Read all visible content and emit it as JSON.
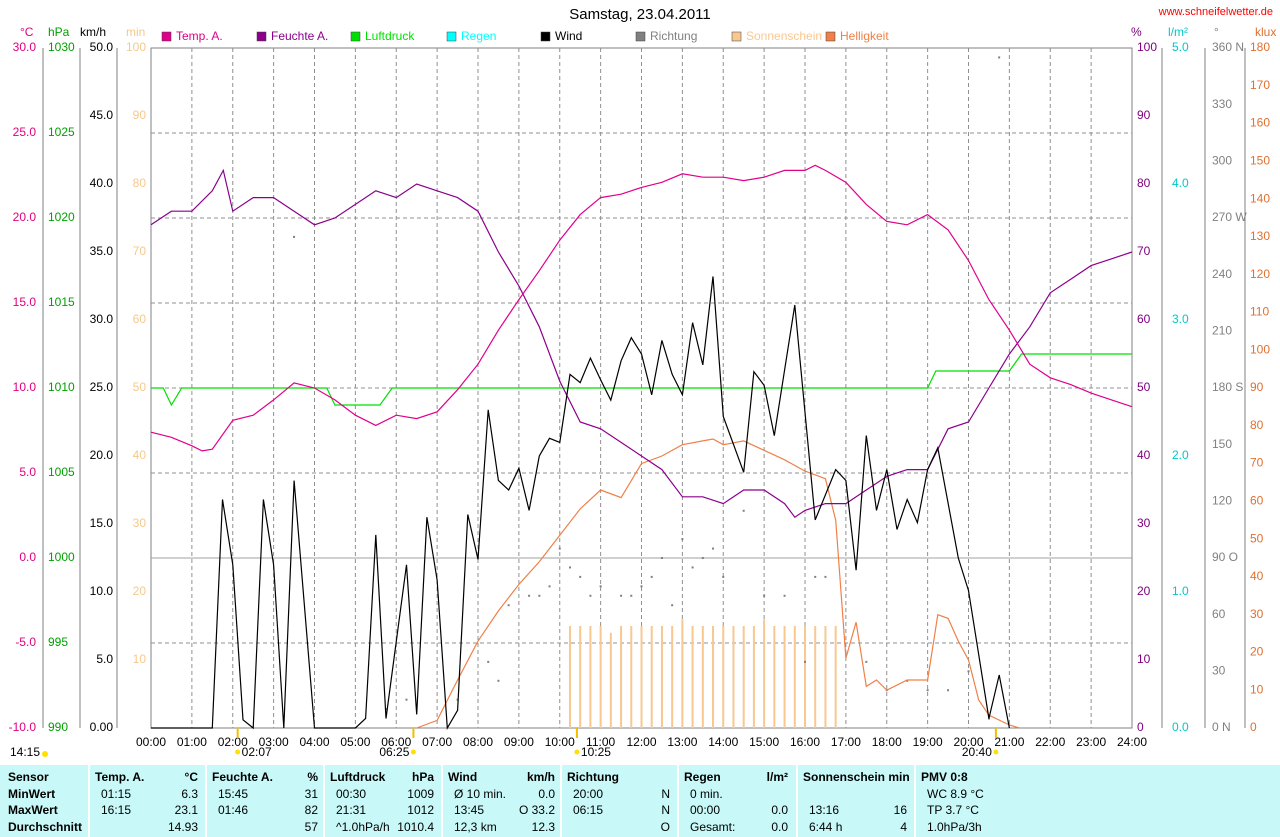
{
  "chart_data": {
    "type": "line",
    "title": "Samstag, 23.04.2011",
    "site": "www.schneifelwetter.de",
    "xlim": [
      0,
      24
    ],
    "xticks": [
      {
        "value": 0,
        "label": "00:00"
      },
      {
        "value": 1,
        "label": "01:00"
      },
      {
        "value": 2,
        "label": "02:00"
      },
      {
        "value": 3,
        "label": "03:00"
      },
      {
        "value": 4,
        "label": "04:00"
      },
      {
        "value": 5,
        "label": "05:00"
      },
      {
        "value": 6,
        "label": "06:00"
      },
      {
        "value": 7,
        "label": "07:00"
      },
      {
        "value": 8,
        "label": "08:00"
      },
      {
        "value": 9,
        "label": "09:00"
      },
      {
        "value": 10,
        "label": "10:00"
      },
      {
        "value": 11,
        "label": "11:00"
      },
      {
        "value": 12,
        "label": "12:00"
      },
      {
        "value": 13,
        "label": "13:00"
      },
      {
        "value": 14,
        "label": "14:00"
      },
      {
        "value": 15,
        "label": "15:00"
      },
      {
        "value": 16,
        "label": "16:00"
      },
      {
        "value": 17,
        "label": "17:00"
      },
      {
        "value": 18,
        "label": "18:00"
      },
      {
        "value": 19,
        "label": "19:00"
      },
      {
        "value": 20,
        "label": "20:00"
      },
      {
        "value": 21,
        "label": "21:00"
      },
      {
        "value": 22,
        "label": "22:00"
      },
      {
        "value": 23,
        "label": "23:00"
      },
      {
        "value": 24,
        "label": "24:00"
      }
    ],
    "grid": true,
    "axes": [
      {
        "unit": "°C",
        "color": "#e0007f",
        "lim": [
          -10,
          30
        ],
        "ticks": [
          {
            "value": 30,
            "label": "30.0"
          },
          {
            "value": 25,
            "label": "25.0"
          },
          {
            "value": 20,
            "label": "20.0"
          },
          {
            "value": 15,
            "label": "15.0"
          },
          {
            "value": 10,
            "label": "10.0"
          },
          {
            "value": 5,
            "label": "5.0"
          },
          {
            "value": 0,
            "label": "0.0"
          },
          {
            "value": -5,
            "label": "-5.0"
          },
          {
            "value": -10,
            "label": "-10.0"
          }
        ]
      },
      {
        "unit": "hPa",
        "color": "#00a000",
        "lim": [
          990,
          1030
        ],
        "ticks": [
          1030,
          1025,
          1020,
          1015,
          1010,
          1005,
          1000,
          995,
          990
        ]
      },
      {
        "unit": "km/h",
        "color": "#000000",
        "lim": [
          0,
          50
        ],
        "ticks": [
          {
            "value": 50,
            "label": "50.0"
          },
          {
            "value": 45,
            "label": "45.0"
          },
          {
            "value": 40,
            "label": "40.0"
          },
          {
            "value": 35,
            "label": "35.0"
          },
          {
            "value": 30,
            "label": "30.0"
          },
          {
            "value": 25,
            "label": "25.0"
          },
          {
            "value": 20,
            "label": "20.0"
          },
          {
            "value": 15,
            "label": "15.0"
          },
          {
            "value": 10,
            "label": "10.0"
          },
          {
            "value": 5,
            "label": "5.0"
          },
          {
            "value": 0,
            "label": "0.00"
          }
        ]
      },
      {
        "unit": "min",
        "color": "#f5c88c",
        "lim": [
          0,
          100
        ],
        "ticks": [
          100,
          90,
          80,
          70,
          60,
          50,
          40,
          30,
          20,
          10
        ]
      },
      {
        "unit": "%",
        "color": "#800080",
        "lim": [
          0,
          100
        ],
        "ticks": [
          100,
          90,
          80,
          70,
          60,
          50,
          40,
          30,
          20,
          10,
          0
        ]
      },
      {
        "unit": "l/m²",
        "color": "#00c8c8",
        "lim": [
          0,
          5
        ],
        "ticks": [
          {
            "value": 5,
            "label": "5.0"
          },
          {
            "value": 4,
            "label": "4.0"
          },
          {
            "value": 3,
            "label": "3.0"
          },
          {
            "value": 2,
            "label": "2.0"
          },
          {
            "value": 1,
            "label": "1.0"
          },
          {
            "value": 0,
            "label": "0.0"
          }
        ]
      },
      {
        "unit": "°",
        "color": "#808080",
        "lim": [
          0,
          360
        ],
        "ticks": [
          {
            "value": 360,
            "label": "360 N"
          },
          330,
          300,
          {
            "value": 270,
            "label": "270 W"
          },
          240,
          210,
          {
            "value": 180,
            "label": "180 S"
          },
          150,
          120,
          {
            "value": 90,
            "label": "90 O"
          },
          60,
          30,
          {
            "value": 0,
            "label": "0 N"
          }
        ]
      },
      {
        "unit": "klux",
        "color": "#e07030",
        "lim": [
          0,
          180
        ],
        "ticks": [
          180,
          170,
          160,
          150,
          140,
          130,
          120,
          110,
          100,
          90,
          80,
          70,
          60,
          50,
          40,
          30,
          20,
          10,
          0
        ]
      }
    ],
    "series": [
      {
        "name": "Temp. A.",
        "color": "#e0008c",
        "axis": 0,
        "style": "line",
        "x": [
          0,
          0.5,
          1,
          1.25,
          1.5,
          2,
          2.5,
          3,
          3.5,
          4,
          4.5,
          5,
          5.5,
          6,
          6.5,
          7,
          7.5,
          8,
          8.5,
          9,
          9.5,
          10,
          10.5,
          11,
          11.5,
          12,
          12.5,
          13,
          13.5,
          14,
          14.5,
          15,
          15.5,
          16,
          16.25,
          16.5,
          17,
          17.5,
          18,
          18.5,
          19,
          19.5,
          20,
          20.5,
          21,
          21.5,
          22,
          22.5,
          23,
          23.5,
          24
        ],
        "values": [
          7.4,
          7.1,
          6.6,
          6.3,
          6.4,
          8.1,
          8.4,
          9.3,
          10.3,
          10.0,
          9.3,
          8.4,
          7.8,
          8.4,
          8.2,
          8.6,
          9.9,
          11.4,
          13.4,
          15.2,
          16.9,
          18.7,
          20.2,
          21.2,
          21.4,
          21.8,
          22.1,
          22.6,
          22.4,
          22.4,
          22.2,
          22.4,
          22.8,
          22.8,
          23.1,
          22.8,
          22.1,
          20.8,
          19.8,
          19.6,
          20.2,
          19.3,
          17.5,
          15.2,
          13.4,
          11.4,
          10.6,
          10.2,
          9.7,
          9.3,
          8.9
        ]
      },
      {
        "name": "Feuchte A.",
        "color": "#8c008c",
        "axis": 4,
        "style": "line",
        "x": [
          0,
          0.5,
          1,
          1.5,
          1.77,
          2,
          2.5,
          3,
          3.5,
          4,
          4.5,
          5,
          5.5,
          6,
          6.5,
          7,
          7.5,
          8,
          8.5,
          9,
          9.5,
          10,
          10.5,
          11,
          11.5,
          12,
          12.5,
          13,
          13.5,
          14,
          14.5,
          15,
          15.5,
          15.75,
          16,
          16.5,
          17,
          17.5,
          18,
          18.5,
          19,
          19.5,
          20,
          20.5,
          21,
          21.5,
          22,
          22.5,
          23,
          23.5,
          24
        ],
        "values": [
          74,
          76,
          76,
          79,
          82,
          76,
          78,
          78,
          76,
          74,
          75,
          77,
          79,
          78,
          80,
          79,
          78,
          76,
          70,
          65,
          59,
          51,
          45,
          44,
          42,
          40,
          38,
          34,
          34,
          33,
          35,
          35,
          33,
          31,
          32,
          33,
          33,
          35,
          37,
          38,
          38,
          44,
          45,
          50,
          55,
          59,
          64,
          66,
          68,
          69,
          70
        ]
      },
      {
        "name": "Luftdruck",
        "color": "#00e000",
        "axis": 1,
        "style": "line",
        "x": [
          0,
          0.3,
          0.5,
          0.75,
          4.3,
          4.5,
          5.6,
          5.9,
          19,
          19.2,
          21,
          21.3,
          24
        ],
        "values": [
          1010,
          1010,
          1009,
          1010,
          1010,
          1009,
          1009,
          1010,
          1010,
          1011,
          1011,
          1012,
          1012
        ]
      },
      {
        "name": "Regen",
        "color": "#00ffff",
        "axis": 5,
        "style": "line",
        "x": [],
        "values": []
      },
      {
        "name": "Wind",
        "color": "#000000",
        "axis": 2,
        "style": "line",
        "x": [
          0,
          1.5,
          1.75,
          2,
          2.25,
          2.5,
          2.75,
          3,
          3.25,
          3.5,
          4,
          5,
          5.25,
          5.5,
          5.75,
          6.25,
          6.5,
          6.75,
          7,
          7.25,
          7.5,
          7.75,
          8,
          8.25,
          8.5,
          8.75,
          9,
          9.25,
          9.5,
          9.75,
          10,
          10.25,
          10.5,
          10.75,
          11,
          11.25,
          11.5,
          11.75,
          12,
          12.25,
          12.5,
          12.75,
          13,
          13.25,
          13.5,
          13.75,
          14,
          14.5,
          14.75,
          15,
          15.25,
          15.75,
          16.25,
          16.75,
          17,
          17.25,
          17.5,
          17.75,
          18,
          18.25,
          18.5,
          18.75,
          19,
          19.25,
          19.75,
          20,
          20.5,
          20.75,
          21
        ],
        "values": [
          0,
          0,
          16.8,
          12,
          0.6,
          0,
          16.8,
          12,
          0,
          18.2,
          0,
          0,
          0.7,
          14.2,
          0.7,
          12,
          1,
          15.5,
          10.9,
          0,
          1.3,
          15.7,
          12.4,
          23.4,
          18.2,
          17.5,
          19.1,
          16,
          20,
          21.3,
          21,
          26,
          25.4,
          27.2,
          25.6,
          24.1,
          27,
          28.7,
          27.5,
          24.5,
          28.5,
          26,
          24.5,
          29.8,
          26.7,
          33.2,
          22.9,
          18.8,
          26.2,
          25.2,
          21.5,
          31.1,
          15.3,
          19,
          18.2,
          11.6,
          21.5,
          16,
          19,
          14.6,
          16.8,
          15.1,
          19,
          20.6,
          12.5,
          10.1,
          0.7,
          3.9,
          0
        ]
      },
      {
        "name": "Richtung",
        "color": "#808080",
        "axis": 6,
        "style": "dots",
        "x": [
          3.5,
          5.75,
          6.25,
          7.5,
          8.25,
          8.5,
          8.75,
          9.25,
          9.5,
          9.75,
          10,
          10.25,
          10.5,
          10.75,
          11,
          11.5,
          11.75,
          12,
          12.25,
          12.5,
          12.75,
          13,
          13.25,
          13.5,
          13.75,
          14,
          14.5,
          15,
          15.5,
          16,
          16.25,
          16.5,
          17.5,
          18,
          18.5,
          19,
          19.5,
          20,
          20.5,
          20.75
        ],
        "values": [
          260,
          10,
          15,
          15,
          35,
          25,
          65,
          70,
          70,
          75,
          95,
          85,
          80,
          70,
          75,
          70,
          70,
          75,
          80,
          90,
          65,
          100,
          85,
          90,
          95,
          80,
          115,
          70,
          70,
          35,
          80,
          80,
          35,
          20,
          25,
          20,
          20,
          30,
          5,
          355
        ]
      },
      {
        "name": "Sonnenschein",
        "color": "#f8c890",
        "axis": 3,
        "style": "bars",
        "x": [
          10.25,
          10.5,
          10.75,
          11,
          11.25,
          11.5,
          11.75,
          12,
          12.25,
          12.5,
          12.75,
          13,
          13.25,
          13.5,
          13.75,
          14,
          14.25,
          14.5,
          14.75,
          15,
          15.25,
          15.5,
          15.75,
          16,
          16.25,
          16.5,
          16.75
        ],
        "values": [
          15,
          15,
          15,
          15,
          14,
          15,
          15,
          15,
          15,
          15,
          15,
          16,
          15,
          15,
          15,
          15,
          15,
          15,
          15,
          16,
          15,
          15,
          15,
          15,
          15,
          15,
          15
        ]
      },
      {
        "name": "Helligkeit",
        "color": "#f08048",
        "axis": 7,
        "style": "line",
        "x": [
          6.5,
          7,
          7.5,
          8,
          8.5,
          9,
          9.5,
          10,
          10.5,
          11,
          11.5,
          12,
          12.5,
          13,
          13.5,
          13.75,
          14,
          14.5,
          15,
          15.5,
          16,
          16.5,
          16.75,
          17,
          17.25,
          17.5,
          17.75,
          18,
          18.5,
          19,
          19.25,
          19.5,
          19.75,
          20,
          20.25,
          20.5,
          21,
          21.25
        ],
        "values": [
          0,
          2,
          12.7,
          23,
          31,
          38,
          44,
          51,
          58,
          63,
          61,
          70,
          72,
          75,
          76,
          76.5,
          75,
          76,
          73.5,
          71,
          68,
          66,
          55,
          18.5,
          28,
          11,
          12.7,
          10,
          12.7,
          12.7,
          30,
          29,
          23,
          18,
          7.4,
          3.4,
          0.8,
          0
        ]
      }
    ],
    "left_note": "14:15",
    "annotations": [
      {
        "label": "02:07",
        "x": 2.12
      },
      {
        "label": "06:25",
        "x": 6.42
      },
      {
        "label": "10:25",
        "x": 10.42
      },
      {
        "label": "20:40",
        "x": 20.67
      }
    ]
  },
  "stats": {
    "sensor_label": "Sensor",
    "row_labels": [
      "MinWert",
      "MaxWert",
      "Durchschnitt"
    ],
    "groups": [
      {
        "title": "Temp. A.",
        "unit": "°C",
        "rows": [
          {
            "label": "01:15",
            "value": "6.3"
          },
          {
            "label": "16:15",
            "value": "23.1"
          },
          {
            "value": "14.93"
          }
        ]
      },
      {
        "title": "Feuchte A.",
        "unit": "%",
        "rows": [
          {
            "label": "15:45",
            "value": "31"
          },
          {
            "label": "01:46",
            "value": "82"
          },
          {
            "value": "57"
          }
        ]
      },
      {
        "title": "Luftdruck",
        "unit": "hPa",
        "rows": [
          {
            "label": "00:30",
            "value": "1009"
          },
          {
            "label": "21:31",
            "value": "1012"
          },
          {
            "label": "^1.0hPa/h",
            "value": "1010.4"
          }
        ]
      },
      {
        "title": "Wind",
        "unit": "km/h",
        "rows": [
          {
            "label": "Ø 10 min.",
            "value": "0.0"
          },
          {
            "label": "13:45",
            "value": "O 33.2"
          },
          {
            "label": "12,3 km",
            "value": "12.3"
          }
        ]
      },
      {
        "title": "Richtung",
        "rows": [
          {
            "label": "20:00",
            "value": "N"
          },
          {
            "label": "06:15",
            "value": "N"
          },
          {
            "value": "O"
          }
        ]
      },
      {
        "title": "Regen",
        "unit": "l/m²",
        "rows": [
          {
            "label": "0 min."
          },
          {
            "label": "00:00",
            "value": "0.0"
          },
          {
            "label": "Gesamt:",
            "value": "0.0"
          }
        ]
      },
      {
        "title": "Sonnenschein min",
        "rows": [
          null,
          {
            "label": "13:16",
            "value": "16"
          },
          {
            "label": "6:44 h",
            "value": "4"
          }
        ]
      },
      {
        "title": "PMV 0:8",
        "rows": [
          {
            "label": "WC 8.9 °C"
          },
          {
            "label": "TP 3.7 °C"
          },
          {
            "label": "1.0hPa/3h"
          }
        ]
      }
    ]
  }
}
